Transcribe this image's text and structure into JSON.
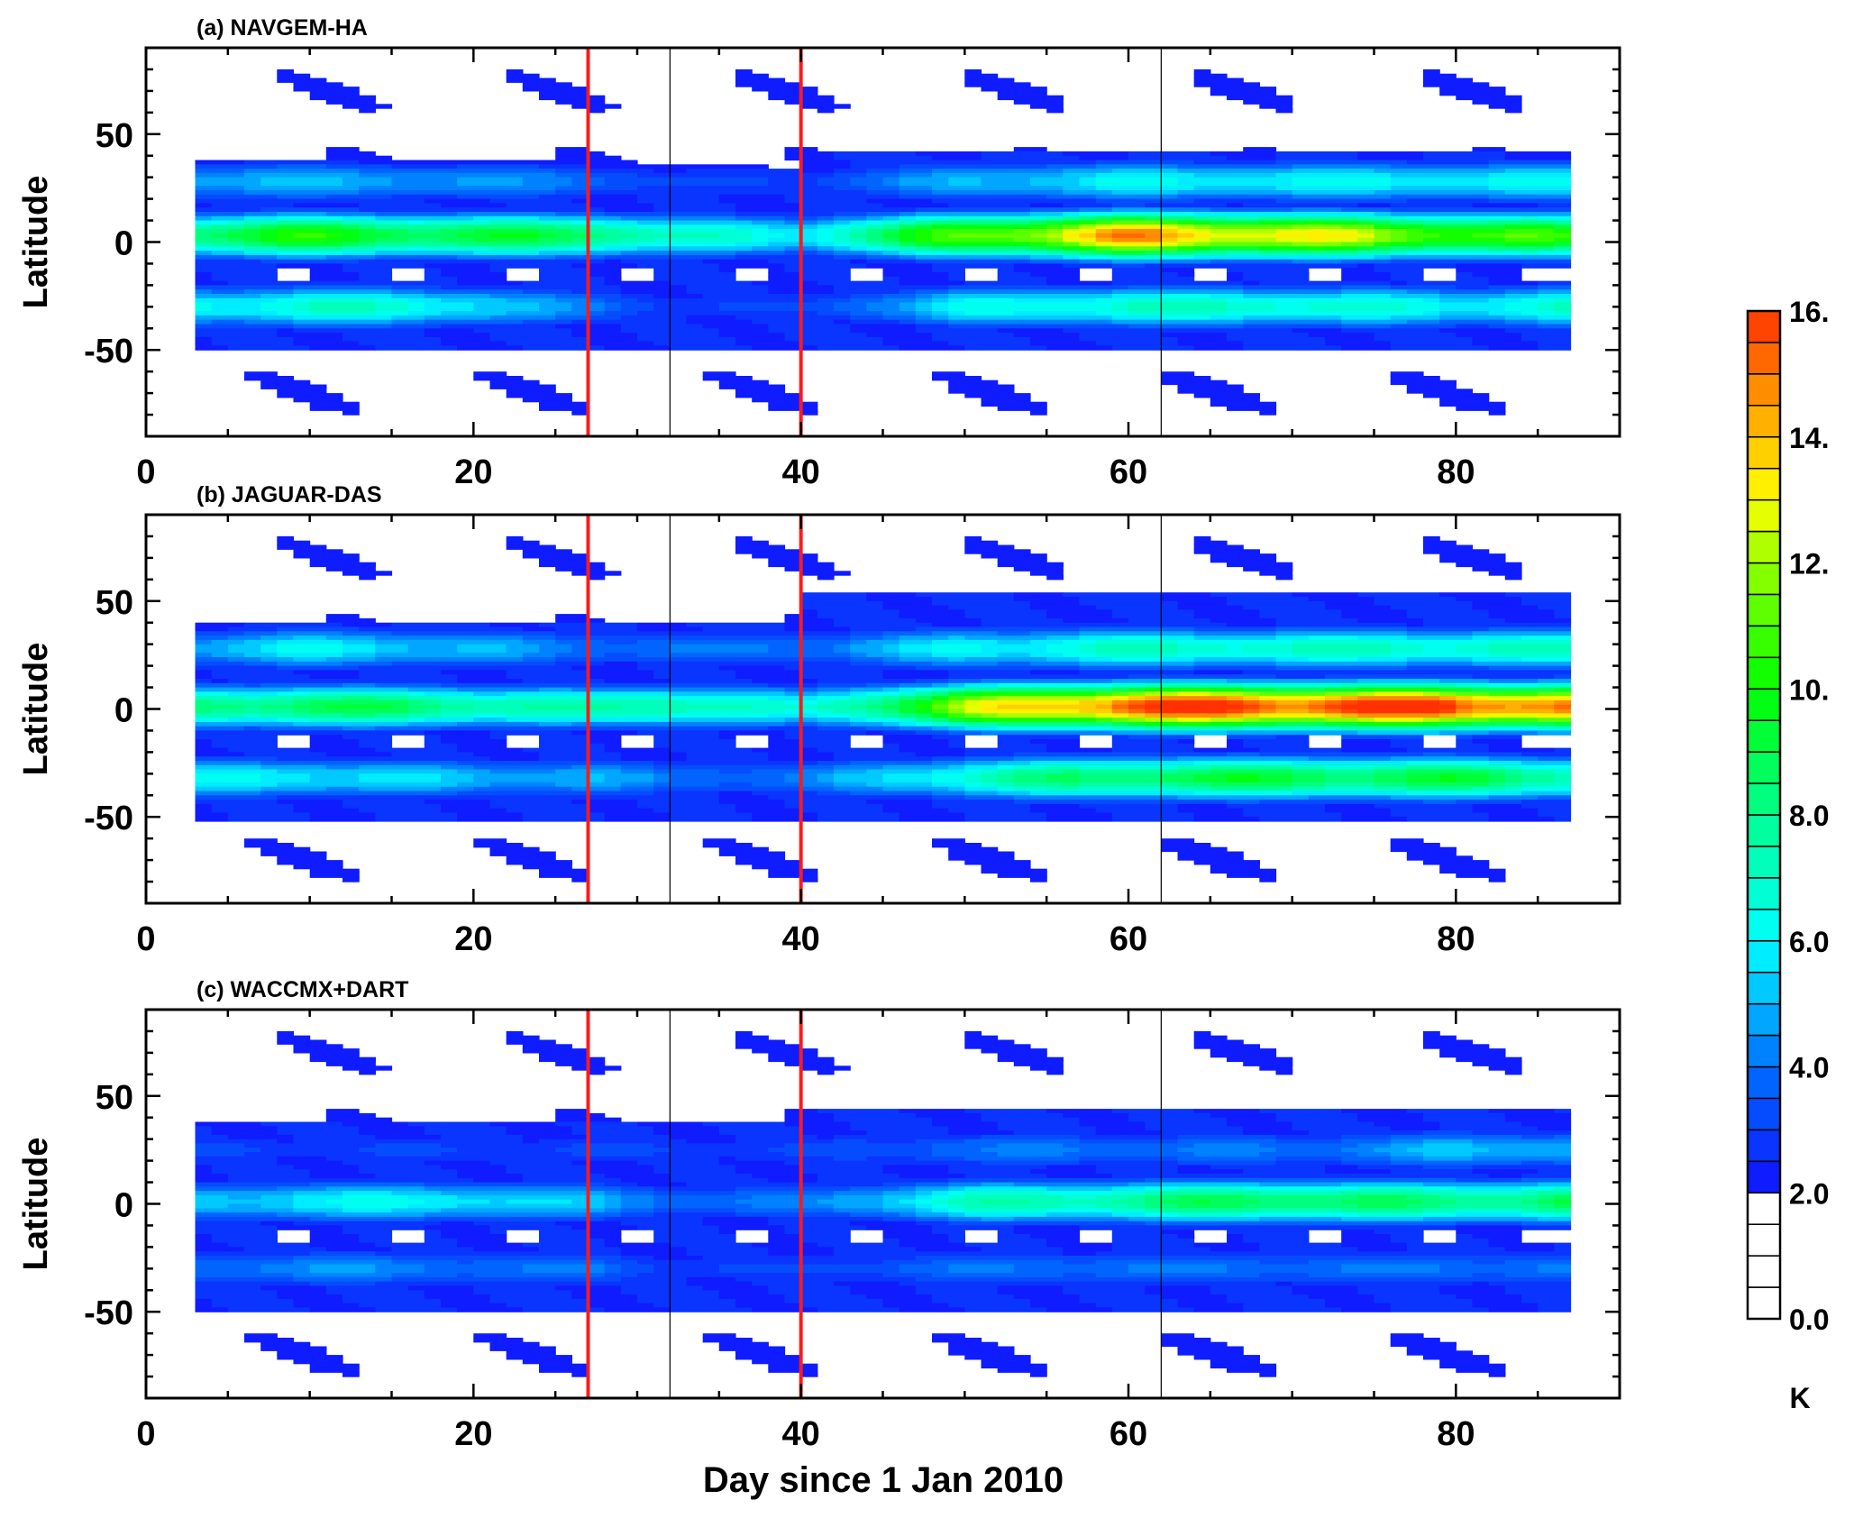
{
  "chart_data": {
    "type": "heatmap",
    "xlabel": "Day since 1 Jan 2010",
    "ylabel": "Latitude",
    "xlim": [
      0,
      90
    ],
    "ylim": [
      -90,
      90
    ],
    "xticks": [
      "0",
      "20",
      "40",
      "60",
      "80"
    ],
    "xtick_values": [
      0,
      20,
      40,
      60,
      80
    ],
    "yticks": [
      "50",
      "0",
      "-50"
    ],
    "ytick_values": [
      50,
      0,
      -50
    ],
    "red_lines_day": [
      27,
      40
    ],
    "black_lines_day": [
      32,
      62
    ],
    "colorbar": {
      "unit": "K",
      "min": 0,
      "max": 16,
      "step": 0.5,
      "labels": [
        "16.",
        "14.",
        "12.",
        "10.",
        "8.0",
        "6.0",
        "4.0",
        "2.0",
        "0.0"
      ],
      "label_values": [
        16,
        14,
        12,
        10,
        8,
        6,
        4,
        2,
        0
      ],
      "white_below": 2
    },
    "day_knots": [
      3,
      10,
      20,
      27,
      32,
      40,
      50,
      60,
      70,
      80,
      87
    ],
    "panels": [
      {
        "title": "(a) NAVGEM-HA",
        "envelope": {
          "south": -50,
          "north_before_40": 35,
          "north_after_40": 42
        },
        "bands": [
          {
            "lat": 3,
            "values": [
              9,
              10,
              9,
              9,
              7,
              6,
              11,
              14.5,
              13,
              11,
              10
            ]
          },
          {
            "lat": 28,
            "values": [
              5,
              5,
              4.5,
              4,
              3,
              3,
              5,
              6,
              6,
              6,
              6
            ]
          },
          {
            "lat": -30,
            "values": [
              6,
              7,
              6,
              4,
              3,
              3,
              6,
              7,
              7,
              6,
              7
            ]
          }
        ]
      },
      {
        "title": "(b) JAGUAR-DAS",
        "envelope": {
          "south": -52,
          "north_before_40": 40,
          "north_after_40": 55
        },
        "bands": [
          {
            "lat": 1,
            "values": [
              8,
              9,
              8,
              7,
              8,
              6,
              12,
              16,
              16,
              16,
              15
            ]
          },
          {
            "lat": 28,
            "values": [
              5,
              6,
              5,
              4,
              4,
              4,
              6,
              7,
              7,
              7,
              7
            ]
          },
          {
            "lat": -32,
            "values": [
              6,
              6,
              5,
              5,
              4,
              4,
              7,
              9,
              9,
              9,
              8
            ]
          }
        ]
      },
      {
        "title": "(c) WACCMX+DART",
        "envelope": {
          "south": -50,
          "north_before_40": 38,
          "north_after_40": 45
        },
        "bands": [
          {
            "lat": 1,
            "values": [
              5,
              6,
              6,
              5,
              4,
              4,
              7,
              8,
              9,
              8,
              9
            ]
          },
          {
            "lat": 25,
            "values": [
              3,
              3,
              3,
              3,
              3,
              3,
              4,
              4,
              4,
              5,
              5
            ]
          },
          {
            "lat": -30,
            "values": [
              4,
              4.5,
              4,
              4,
              3,
              3,
              4,
              4,
              4,
              4,
              4
            ]
          }
        ]
      }
    ],
    "colors": {
      "red_line": "#ff1a1a"
    }
  }
}
